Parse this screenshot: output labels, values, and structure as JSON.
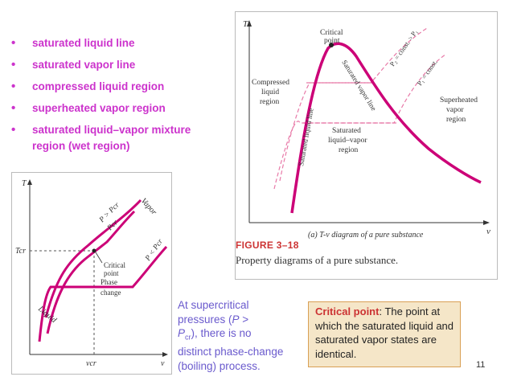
{
  "bullets": [
    "saturated liquid line",
    "saturated vapor line",
    "compressed liquid region",
    "superheated vapor region",
    "saturated liquid–vapor mixture region (wet region)"
  ],
  "figure_a": {
    "axis_y": "T",
    "axis_x": "v",
    "critical_point": [
      "Critical",
      "point"
    ],
    "p2_label": "P₂ = const. > P₁",
    "p1_label": "P₁ = const.",
    "compressed": [
      "Compressed",
      "liquid",
      "region"
    ],
    "superheated": [
      "Superheated",
      "vapor",
      "region"
    ],
    "mixture": [
      "Saturated",
      "liquid–vapor",
      "region"
    ],
    "sat_liquid_line": "Saturated liquid line",
    "sat_vapor_line": "Saturated vapor line",
    "subcaption": "(a) T-v diagram of a pure substance",
    "caption_fig": "FIGURE 3–18",
    "caption_text": "Property diagrams of a pure substance."
  },
  "figure_b": {
    "axis_y": "T",
    "axis_x": "v",
    "t_cr": "Tcr",
    "v_cr": "vcr",
    "p_gt": "P > Pcr",
    "p_cr": "Pcr",
    "p_lt": "P < Pcr",
    "vapor": "Vapor",
    "liquid": "Liquid",
    "critical_point": [
      "Critical",
      "point"
    ],
    "phase_change": [
      "Phase",
      "change"
    ]
  },
  "note": {
    "line1": "At supercritical",
    "line2": "pressures (",
    "p": "P",
    "gt": " >",
    "line3_p": "P",
    "line3_sub": "cr",
    "line3_rest": "), there is no",
    "line4": "distinct phase-change",
    "line5": "(boiling) process."
  },
  "critical_box": {
    "label": "Critical point",
    "text": ": The point at which the saturated liquid and saturated vapor states are identical."
  },
  "page_number": "11",
  "colors": {
    "accent": "#cc33cc",
    "curve": "#cc0077",
    "note": "#6a5acd",
    "box": "#f5e6c8"
  }
}
